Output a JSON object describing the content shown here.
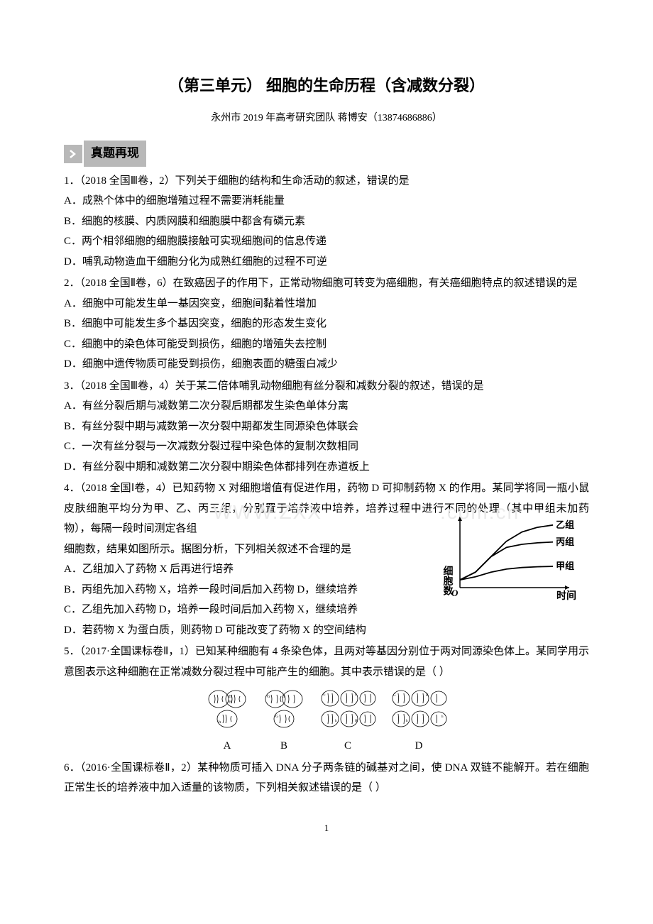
{
  "title": "（第三单元）    细胞的生命历程（含减数分裂）",
  "subtitle": "永州市 2019 年高考研究团队   蒋博安（13874686886）",
  "section_header": "真题再现",
  "watermark_a": "WWW.ZXX",
  "watermark_b": ".com.cn",
  "page_number": "1",
  "questions": [
    {
      "stem": "1．（2018 全国Ⅲ卷，2）下列关于细胞的结构和生命活动的叙述，错误的是",
      "options": [
        "A．成熟个体中的细胞增殖过程不需要消耗能量",
        "B．细胞的核膜、内质网膜和细胞膜中都含有磷元素",
        "C．两个相邻细胞的细胞膜接触可实现细胞间的信息传递",
        "D．哺乳动物造血干细胞分化为成熟红细胞的过程不可逆"
      ]
    },
    {
      "stem": "2．（2018 全国Ⅱ卷，6）在致癌因子的作用下，正常动物细胞可转变为癌细胞，有关癌细胞特点的叙述错误的是",
      "options": [
        "A．细胞中可能发生单一基因突变，细胞间黏着性增加",
        "B．细胞中可能发生多个基因突变，细胞的形态发生变化",
        "C．细胞中的染色体可能受到损伤，细胞的增殖失去控制",
        "D．细胞中遗传物质可能受到损伤，细胞表面的糖蛋白减少"
      ]
    },
    {
      "stem": "3．（2018 全国Ⅲ卷，4）关于某二倍体哺乳动物细胞有丝分裂和减数分裂的叙述，错误的是",
      "options": [
        "A．有丝分裂后期与减数第二次分裂后期都发生染色单体分离",
        "B．有丝分裂中期与减数第一次分裂中期都发生同源染色体联会",
        "C．一次有丝分裂与一次减数分裂过程中染色体的复制次数相同",
        "D．有丝分裂中期和减数第二次分裂中期染色体都排列在赤道板上"
      ]
    }
  ],
  "q4": {
    "stem1": "4．（2018 全国Ⅰ卷，4）已知药物 X 对细胞增值有促进作用，药物 D 可抑制药物 X 的作用。某同学将同一瓶小鼠皮肤细胞平均分为甲、乙、丙三组，分别置于培养液中培养，培养过程中进行不同的处理（其中甲组未加药物），每隔一段时间测定各组",
    "stem2": "细胞数，结果如图所示。据图分析，下列相关叙述不合理的是",
    "options": [
      "A．乙组加入了药物 X 后再进行培养",
      "B．丙组先加入药物 X，培养一段时间后加入药物 D，继续培养",
      "C．乙组先加入药物 D，培养一段时间后加入药物 X，继续培养",
      "D．若药物 X 为蛋白质，则药物 D 可能改变了药物 X 的空间结构"
    ],
    "chart": {
      "type": "line",
      "x_label": "时间",
      "y_label": "细胞数",
      "series": [
        {
          "name": "乙组",
          "points": [
            [
              0,
              1
            ],
            [
              1,
              2
            ],
            [
              2,
              4
            ],
            [
              3,
              6
            ],
            [
              4,
              7.2
            ],
            [
              5,
              7.8
            ],
            [
              6,
              8.1
            ]
          ],
          "color": "#000"
        },
        {
          "name": "丙组",
          "points": [
            [
              0,
              1
            ],
            [
              1,
              2
            ],
            [
              2,
              4
            ],
            [
              3,
              5.2
            ],
            [
              4,
              5.6
            ],
            [
              5,
              5.8
            ],
            [
              6,
              5.9
            ]
          ],
          "color": "#000"
        },
        {
          "name": "甲组",
          "points": [
            [
              0,
              1
            ],
            [
              1,
              1.4
            ],
            [
              2,
              2
            ],
            [
              3,
              2.4
            ],
            [
              4,
              2.6
            ],
            [
              5,
              2.7
            ],
            [
              6,
              2.75
            ]
          ],
          "color": "#000"
        }
      ],
      "x_range": [
        0,
        6.5
      ],
      "y_range": [
        0,
        9
      ],
      "origin_label": "O",
      "axis_color": "#000",
      "label_fontsize": 14
    }
  },
  "q5": {
    "stem": "5．（2017·全国课标卷Ⅱ，1）已知某种细胞有 4 条染色体，且两对等基因分别位于两对同源染色体上。某同学用示意图表示这种细胞在正常减数分裂过程中可能产生的细胞。其中表示错误的是（    ）",
    "labels": [
      "A",
      "B",
      "C",
      "D"
    ],
    "cell_stroke": "#000",
    "cell_fill": "#fff"
  },
  "q6": {
    "stem": "6．（2016·全国课标卷Ⅱ，2）某种物质可插入 DNA 分子两条链的碱基对之间，使 DNA 双链不能解开。若在细胞正常生长的培养液中加入适量的该物质，下列相关叙述错误的是（    ）"
  }
}
